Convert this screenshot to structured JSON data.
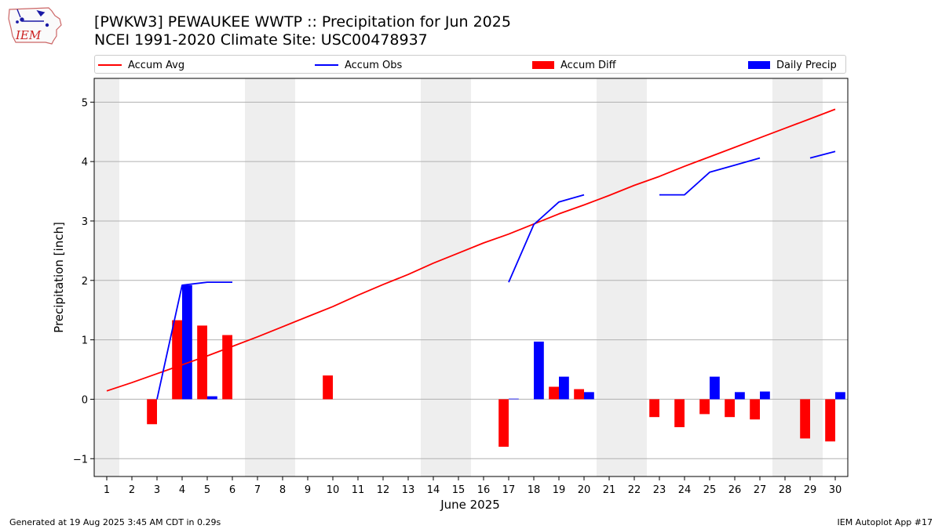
{
  "header": {
    "title_line1": "[PWKW3] PEWAUKEE WWTP :: Precipitation for Jun 2025",
    "title_line2": "NCEI 1991-2020 Climate Site: USC00478937",
    "logo_text": "IEM"
  },
  "footer": {
    "generated": "Generated at 19 Aug 2025 3:45 AM CDT in 0.29s",
    "app": "IEM Autoplot App #17"
  },
  "chart_data": {
    "type": "bar",
    "xlabel": "June 2025",
    "ylabel": "Precipitation [inch]",
    "x": [
      1,
      2,
      3,
      4,
      5,
      6,
      7,
      8,
      9,
      10,
      11,
      12,
      13,
      14,
      15,
      16,
      17,
      18,
      19,
      20,
      21,
      22,
      23,
      24,
      25,
      26,
      27,
      28,
      29,
      30
    ],
    "xlim": [
      0.5,
      30.5
    ],
    "ylim": [
      -1.3,
      5.4
    ],
    "yticks": [
      -1,
      0,
      1,
      2,
      3,
      4,
      5
    ],
    "ytick_labels": [
      "−1",
      "0",
      "1",
      "2",
      "3",
      "4",
      "5"
    ],
    "grid": "y",
    "legend_placement": "top",
    "weekend_bands": [
      [
        0.5,
        1.5
      ],
      [
        6.5,
        8.5
      ],
      [
        13.5,
        15.5
      ],
      [
        20.5,
        22.5
      ],
      [
        27.5,
        29.5
      ]
    ],
    "series": [
      {
        "name": "Accum Avg",
        "kind": "line",
        "color": "#ff0000",
        "values": [
          0.14,
          0.28,
          0.43,
          0.58,
          0.73,
          0.89,
          1.05,
          1.22,
          1.39,
          1.56,
          1.75,
          1.93,
          2.1,
          2.29,
          2.46,
          2.63,
          2.78,
          2.95,
          3.12,
          3.27,
          3.43,
          3.6,
          3.75,
          3.92,
          4.08,
          4.24,
          4.4,
          4.56,
          4.72,
          4.88
        ]
      },
      {
        "name": "Accum Obs",
        "kind": "line",
        "color": "#0000ff",
        "values": [
          null,
          null,
          0.0,
          1.92,
          1.97,
          1.97,
          null,
          null,
          null,
          null,
          null,
          null,
          null,
          null,
          null,
          null,
          1.97,
          2.94,
          3.32,
          3.44,
          null,
          null,
          3.44,
          3.44,
          3.82,
          3.94,
          4.06,
          null,
          4.06,
          4.17
        ]
      },
      {
        "name": "Accum Diff",
        "kind": "bar",
        "color": "#ff0000",
        "values": [
          null,
          null,
          -0.42,
          1.33,
          1.24,
          1.08,
          null,
          null,
          null,
          0.4,
          null,
          null,
          null,
          null,
          null,
          null,
          -0.8,
          null,
          0.21,
          0.17,
          null,
          null,
          -0.3,
          -0.47,
          -0.25,
          -0.3,
          -0.34,
          null,
          -0.66,
          -0.71
        ]
      },
      {
        "name": "Daily Precip",
        "kind": "bar",
        "color": "#0000ff",
        "values": [
          null,
          null,
          null,
          1.92,
          0.05,
          null,
          null,
          null,
          null,
          null,
          null,
          null,
          null,
          null,
          null,
          null,
          0.01,
          0.97,
          0.38,
          0.12,
          null,
          null,
          null,
          null,
          0.38,
          0.12,
          0.13,
          null,
          null,
          0.12
        ]
      }
    ]
  }
}
